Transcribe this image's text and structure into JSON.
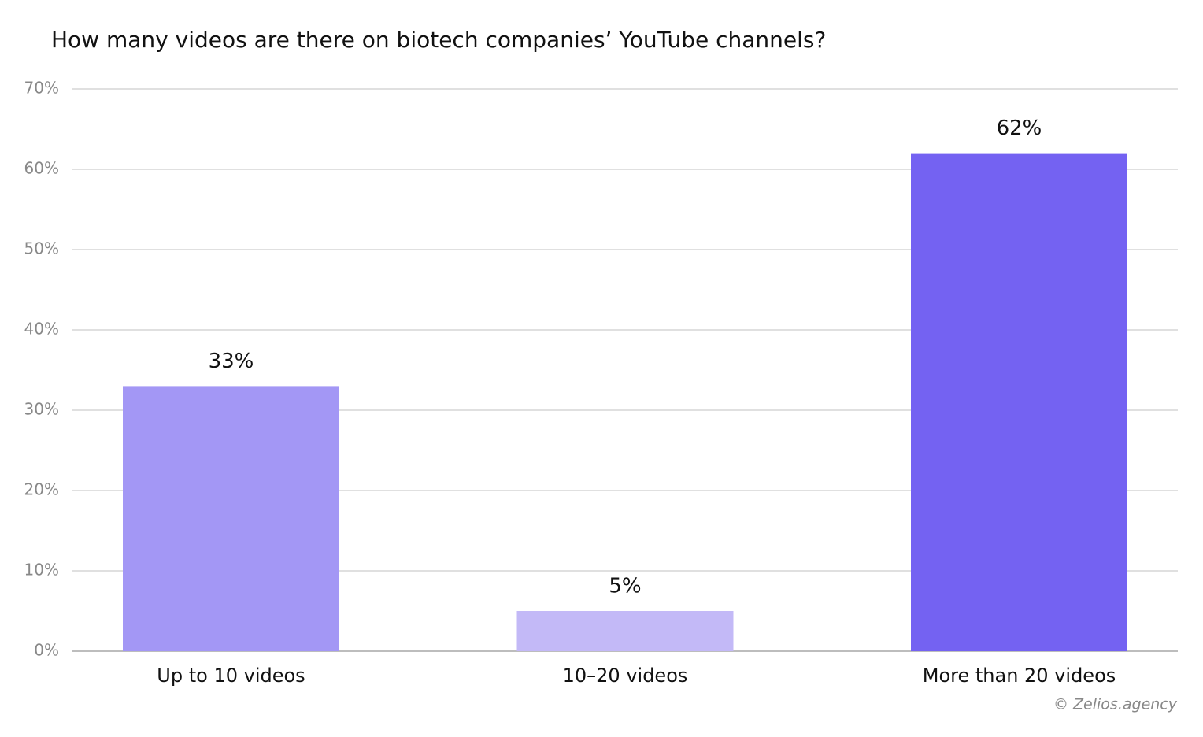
{
  "chart_data": {
    "type": "bar",
    "title": "How many videos are there on biotech companies’ YouTube channels?",
    "categories": [
      "Up to 10 videos",
      "10–20 videos",
      "More than 20 videos"
    ],
    "values": [
      33,
      5,
      62
    ],
    "value_labels": [
      "33%",
      "5%",
      "62%"
    ],
    "colors": [
      "#a397f5",
      "#c3b9f7",
      "#7462f2"
    ],
    "ylim": [
      0,
      70
    ],
    "yticks": [
      {
        "value": 0,
        "label": "0%"
      },
      {
        "value": 10,
        "label": "10%"
      },
      {
        "value": 20,
        "label": "20%"
      },
      {
        "value": 30,
        "label": "30%"
      },
      {
        "value": 40,
        "label": "40%"
      },
      {
        "value": 50,
        "label": "50%"
      },
      {
        "value": 60,
        "label": "60%"
      },
      {
        "value": 70,
        "label": "70%"
      }
    ],
    "grid": true,
    "source": "© Zelios.agency"
  }
}
